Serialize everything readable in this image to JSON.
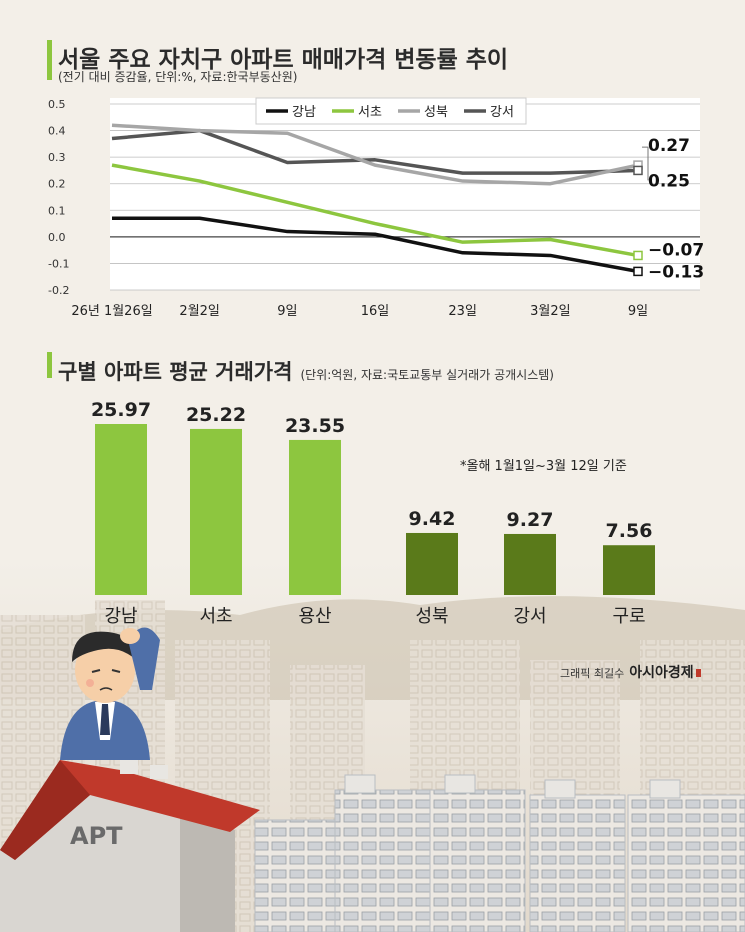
{
  "line_section": {
    "title": "서울 주요 자치구 아파트 매매가격 변동률 추이",
    "subtitle": "(전기 대비 증감율, 단위:%, 자료:한국부동산원)"
  },
  "bar_section": {
    "title": "구별 아파트 평균 거래가격",
    "subtitle": "(단위:억원, 자료:국토교통부 실거래가 공개시스템)",
    "note": "*올해 1월1일~3월 12일 기준"
  },
  "credit": {
    "prefix": "그래픽 최길수",
    "brand": "아시아경제"
  },
  "illustration": {
    "building_label": "APT"
  },
  "colors": {
    "gangnam": "#111111",
    "seocho": "#8dc63f",
    "seongbuk": "#a6a6a6",
    "gangseo": "#555555",
    "bar_light": "#8dc63f",
    "bar_dark": "#5a7a1a",
    "roof": "#c0392b"
  },
  "chart_data": [
    {
      "type": "line",
      "x": [
        "26년 1월26일",
        "2월2일",
        "9일",
        "16일",
        "23일",
        "3월2일",
        "9일"
      ],
      "ylim": [
        -0.2,
        0.5
      ],
      "yticks": [
        "0.5",
        "0.4",
        "0.3",
        "0.2",
        "0.1",
        "0.0",
        "-0.1",
        "-0.2"
      ],
      "grid": true,
      "legend": "top-center",
      "series": [
        {
          "name": "강남",
          "color_key": "gangnam",
          "values": [
            0.07,
            0.07,
            0.02,
            0.01,
            -0.06,
            -0.07,
            -0.13
          ]
        },
        {
          "name": "서초",
          "color_key": "seocho",
          "values": [
            0.27,
            0.21,
            0.13,
            0.05,
            -0.02,
            -0.01,
            -0.07
          ]
        },
        {
          "name": "성북",
          "color_key": "seongbuk",
          "values": [
            0.42,
            0.4,
            0.39,
            0.27,
            0.21,
            0.2,
            0.27
          ]
        },
        {
          "name": "강서",
          "color_key": "gangseo",
          "values": [
            0.37,
            0.4,
            0.28,
            0.29,
            0.24,
            0.24,
            0.25
          ]
        }
      ],
      "end_labels": [
        "0.27",
        "0.25",
        "−0.07",
        "−0.13"
      ]
    },
    {
      "type": "bar",
      "categories": [
        "강남",
        "서초",
        "용산",
        "성북",
        "강서",
        "구로"
      ],
      "values": [
        25.97,
        25.22,
        23.55,
        9.42,
        9.27,
        7.56
      ],
      "value_labels": [
        "25.97",
        "25.22",
        "23.55",
        "9.42",
        "9.27",
        "7.56"
      ],
      "ylim": [
        0,
        27
      ]
    }
  ]
}
